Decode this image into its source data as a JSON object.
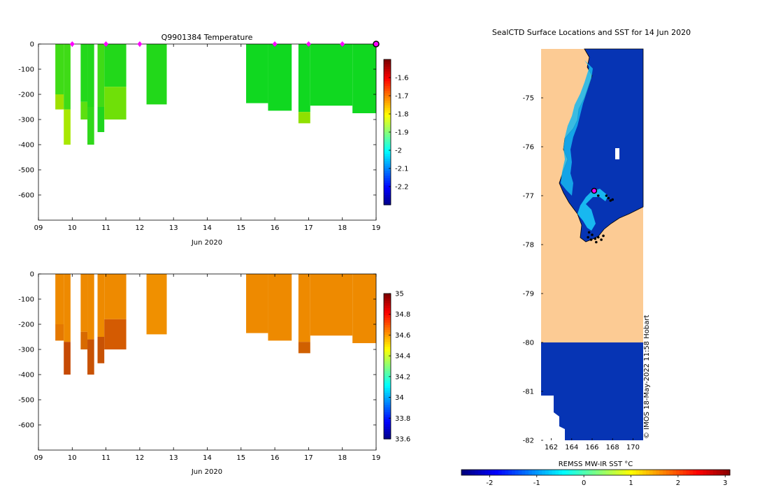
{
  "chart_data": [
    {
      "type": "heatmap",
      "title": "Q9901384  Temperature",
      "xlabel": "Jun 2020",
      "ylabel": "",
      "x_ticks": [
        "09",
        "10",
        "11",
        "12",
        "13",
        "14",
        "15",
        "16",
        "17",
        "18",
        "19"
      ],
      "x_range": [
        9,
        19
      ],
      "y_ticks": [
        0,
        -100,
        -200,
        -300,
        -400,
        -500,
        -600
      ],
      "ylim": [
        -700,
        0
      ],
      "colorbar_ticks": [
        -1.6,
        -1.7,
        -1.8,
        -1.9,
        -2,
        -2.1,
        -2.2
      ],
      "colorbar_range": [
        -2.3,
        -1.5
      ],
      "profile_markers": [
        10,
        11,
        12,
        16,
        17,
        18
      ],
      "current_marker": 19,
      "profiles": [
        {
          "x0": 9.5,
          "x1": 9.75,
          "bottom": -260,
          "color": "#3fdb16",
          "deep_color": "#9ee000",
          "deep_from": -200
        },
        {
          "x0": 9.75,
          "x1": 9.95,
          "bottom": -400,
          "color": "#3fdb16",
          "deep_color": "#a8e800",
          "deep_from": -260
        },
        {
          "x0": 10.25,
          "x1": 10.45,
          "bottom": -300,
          "color": "#22d81a",
          "deep_color": "#5ddf10",
          "deep_from": -230
        },
        {
          "x0": 10.45,
          "x1": 10.65,
          "bottom": -400,
          "color": "#22d81a",
          "deep_color": "#30d81a",
          "deep_from": -250
        },
        {
          "x0": 10.75,
          "x1": 10.95,
          "bottom": -350,
          "color": "#3fdb16",
          "deep_color": "#1fd61e",
          "deep_from": -250
        },
        {
          "x0": 10.95,
          "x1": 11.6,
          "bottom": -300,
          "color": "#22d81a",
          "deep_color": "#6fe008",
          "deep_from": -170
        },
        {
          "x0": 12.2,
          "x1": 12.8,
          "bottom": -240,
          "color": "#22d81a",
          "deep_color": "#22d81a",
          "deep_from": -240
        },
        {
          "x0": 15.15,
          "x1": 15.8,
          "bottom": -235,
          "color": "#10d820",
          "deep_color": "#10d820",
          "deep_from": -235
        },
        {
          "x0": 15.8,
          "x1": 16.5,
          "bottom": -265,
          "color": "#10d820",
          "deep_color": "#10d820",
          "deep_from": -265
        },
        {
          "x0": 16.7,
          "x1": 17.05,
          "bottom": -315,
          "color": "#10d820",
          "deep_color": "#8fe000",
          "deep_from": -270
        },
        {
          "x0": 17.05,
          "x1": 18.3,
          "bottom": -245,
          "color": "#10d820",
          "deep_color": "#10d820",
          "deep_from": -245
        },
        {
          "x0": 18.3,
          "x1": 19.0,
          "bottom": -275,
          "color": "#10d820",
          "deep_color": "#10d820",
          "deep_from": -275
        }
      ]
    },
    {
      "type": "heatmap",
      "title": "",
      "xlabel": "Jun 2020",
      "ylabel": "",
      "x_ticks": [
        "09",
        "10",
        "11",
        "12",
        "13",
        "14",
        "15",
        "16",
        "17",
        "18",
        "19"
      ],
      "x_range": [
        9,
        19
      ],
      "y_ticks": [
        0,
        -100,
        -200,
        -300,
        -400,
        -500,
        -600
      ],
      "ylim": [
        -700,
        0
      ],
      "colorbar_ticks": [
        35,
        34.8,
        34.6,
        34.4,
        34.2,
        34,
        33.8,
        33.6
      ],
      "colorbar_range": [
        33.6,
        35.0
      ],
      "profiles": [
        {
          "x0": 9.5,
          "x1": 9.75,
          "bottom": -265,
          "color": "#ee8a00",
          "deep_color": "#e57800",
          "deep_from": -200
        },
        {
          "x0": 9.75,
          "x1": 9.95,
          "bottom": -400,
          "color": "#ee8a00",
          "deep_color": "#c64a04",
          "deep_from": -270
        },
        {
          "x0": 10.25,
          "x1": 10.45,
          "bottom": -300,
          "color": "#ee8a00",
          "deep_color": "#d86a00",
          "deep_from": -230
        },
        {
          "x0": 10.45,
          "x1": 10.65,
          "bottom": -400,
          "color": "#ee8a00",
          "deep_color": "#c85204",
          "deep_from": -260
        },
        {
          "x0": 10.75,
          "x1": 10.95,
          "bottom": -355,
          "color": "#ee8a00",
          "deep_color": "#c85204",
          "deep_from": -250
        },
        {
          "x0": 10.95,
          "x1": 11.6,
          "bottom": -300,
          "color": "#ee8a00",
          "deep_color": "#d45b02",
          "deep_from": -180
        },
        {
          "x0": 12.2,
          "x1": 12.8,
          "bottom": -240,
          "color": "#f09000",
          "deep_color": "#f09000",
          "deep_from": -240
        },
        {
          "x0": 15.15,
          "x1": 15.8,
          "bottom": -235,
          "color": "#ee8a00",
          "deep_color": "#ee8a00",
          "deep_from": -235
        },
        {
          "x0": 15.8,
          "x1": 16.5,
          "bottom": -265,
          "color": "#ee8a00",
          "deep_color": "#ee8a00",
          "deep_from": -265
        },
        {
          "x0": 16.7,
          "x1": 17.05,
          "bottom": -315,
          "color": "#ee8a00",
          "deep_color": "#d06000",
          "deep_from": -270
        },
        {
          "x0": 17.05,
          "x1": 18.3,
          "bottom": -245,
          "color": "#ee8a00",
          "deep_color": "#ee8a00",
          "deep_from": -245
        },
        {
          "x0": 18.3,
          "x1": 19.0,
          "bottom": -275,
          "color": "#ee8a00",
          "deep_color": "#ee8a00",
          "deep_from": -275
        }
      ]
    },
    {
      "type": "heatmap",
      "title": "SealCTD Surface Locations and SST for 14 Jun 2020",
      "xlabel": "REMSS MW-IR SST °C",
      "x_ticks": [
        162,
        164,
        166,
        168,
        170
      ],
      "x_range": [
        161,
        171
      ],
      "y_ticks": [
        -75,
        -76,
        -77,
        -78,
        -79,
        -80,
        -81,
        -82
      ],
      "y_range": [
        -82,
        -74
      ],
      "colorbar_ticks": [
        -2,
        -1,
        0,
        1,
        2,
        3
      ],
      "colorbar_range": [
        -2.6,
        3.1
      ],
      "credit": "© IMOS 18-May-2022 11:58 Hobart",
      "ocean_color": "#0634b4",
      "land_color": "#fccb94",
      "coast_color": "#18b8f0",
      "current_position": {
        "lon": 166.2,
        "lat": -76.9
      },
      "track_points": [
        {
          "lon": 167.6,
          "lat": -77.05
        },
        {
          "lon": 167.8,
          "lat": -77.1
        },
        {
          "lon": 167.4,
          "lat": -77.0
        },
        {
          "lon": 168.0,
          "lat": -77.08
        },
        {
          "lon": 166.6,
          "lat": -77.0
        },
        {
          "lon": 165.6,
          "lat": -77.85
        },
        {
          "lon": 165.9,
          "lat": -77.9
        },
        {
          "lon": 166.3,
          "lat": -77.88
        },
        {
          "lon": 166.6,
          "lat": -77.85
        },
        {
          "lon": 166.9,
          "lat": -77.9
        },
        {
          "lon": 167.1,
          "lat": -77.82
        },
        {
          "lon": 166.0,
          "lat": -77.8
        },
        {
          "lon": 165.7,
          "lat": -77.75
        },
        {
          "lon": 166.4,
          "lat": -77.95
        }
      ]
    }
  ]
}
